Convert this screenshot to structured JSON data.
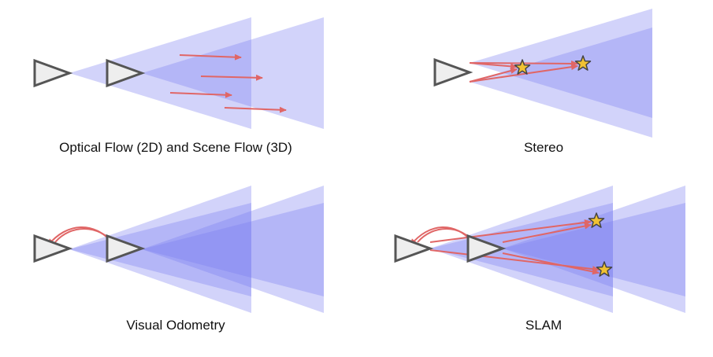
{
  "panels": [
    {
      "id": "optical-flow",
      "caption": "Optical Flow (2D) and Scene Flow (3D)"
    },
    {
      "id": "stereo",
      "caption": "Stereo"
    },
    {
      "id": "visual-odometry",
      "caption": "Visual Odometry"
    },
    {
      "id": "slam",
      "caption": "SLAM"
    }
  ],
  "colors": {
    "frustum": "#7b7ff0",
    "camera_fill": "#eeeeee",
    "camera_stroke": "#555555",
    "arrow": "#e06666",
    "star_fill": "#f1c232",
    "star_stroke": "#444444"
  },
  "icons": [
    "camera-icon",
    "star-icon",
    "arrow-icon"
  ]
}
